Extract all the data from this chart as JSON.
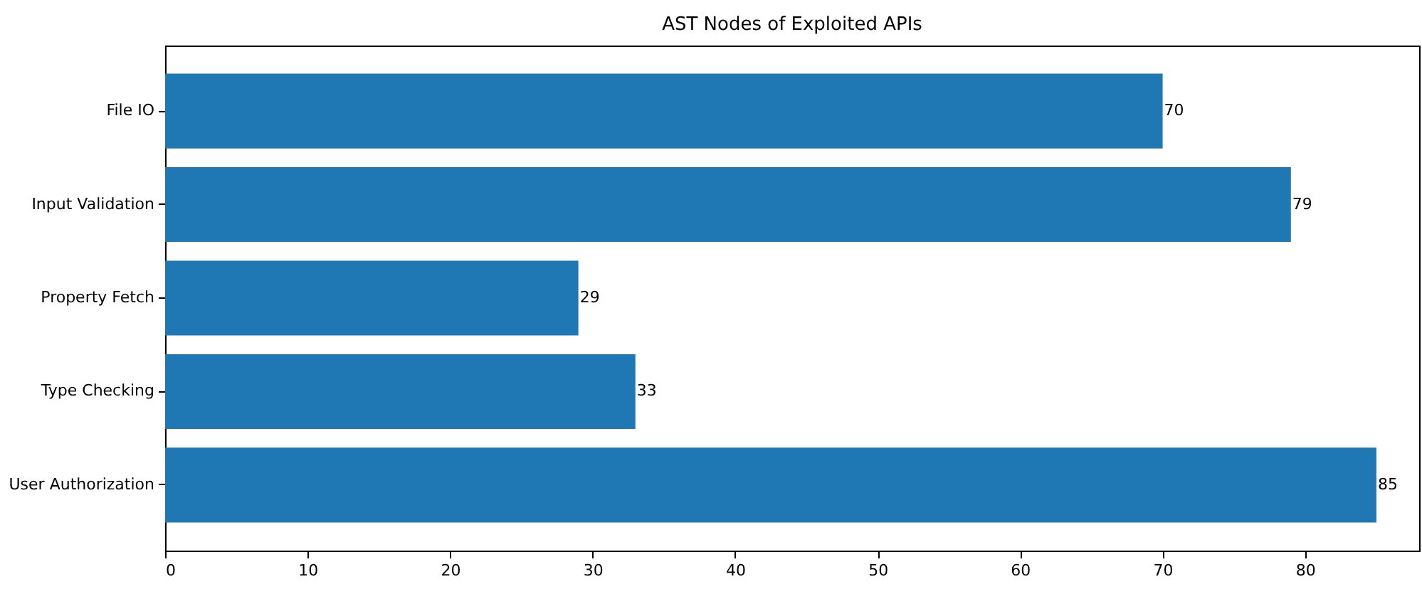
{
  "chart_data": {
    "type": "bar",
    "orientation": "horizontal",
    "title": "AST Nodes of Exploited APIs",
    "categories": [
      "File IO",
      "Input Validation",
      "Property Fetch",
      "Type Checking",
      "User Authorization"
    ],
    "values": [
      70,
      79,
      29,
      33,
      85
    ],
    "color": "#1f77b4",
    "xlim": [
      0,
      88
    ],
    "xticks": [
      0,
      10,
      20,
      30,
      40,
      50,
      60,
      70,
      80
    ],
    "grid": false,
    "data_labels": true
  }
}
